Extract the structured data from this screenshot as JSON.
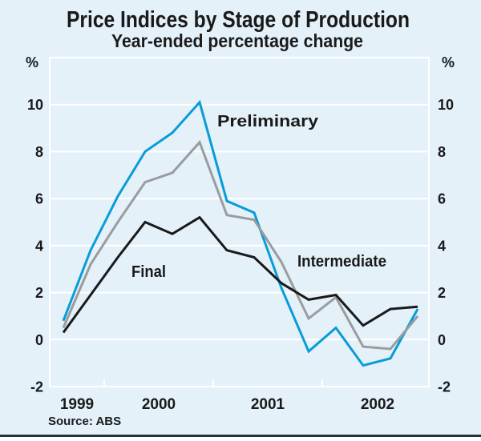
{
  "header": {
    "title": "Price Indices by Stage of Production",
    "subtitle": "Year-ended percentage change"
  },
  "axes": {
    "left_unit": "%",
    "right_unit": "%",
    "y_tick_values": [
      -2,
      0,
      2,
      4,
      6,
      8,
      10
    ],
    "y_gridline_values": [
      0,
      2,
      4,
      6,
      8,
      10
    ],
    "x_labels": [
      "1999",
      "2000",
      "2001",
      "2002"
    ]
  },
  "source_note": "Source: ABS",
  "colors": {
    "background": "#E4F1F9",
    "gridline": "#FFFFFF",
    "text": "#1A1A1A",
    "bottom_rule": "#28323C",
    "preliminary": "#089CD8",
    "intermediate": "#9A9C9E",
    "final": "#1A1A1A"
  },
  "chart_data": {
    "type": "line",
    "title": "Price Indices by Stage of Production",
    "subtitle": "Year-ended percentage change",
    "ylabel": "%",
    "ylim": [
      -2,
      12
    ],
    "y_tick_step": 2,
    "grid": true,
    "legend_position": "inline-labels",
    "x": [
      "1999 Q1",
      "1999 Q2",
      "1999 Q3",
      "1999 Q4",
      "2000 Q1",
      "2000 Q2",
      "2000 Q3",
      "2000 Q4",
      "2001 Q1",
      "2001 Q2",
      "2001 Q3",
      "2001 Q4",
      "2002 Q1",
      "2002 Q2"
    ],
    "series": [
      {
        "key": "preliminary",
        "name": "Preliminary",
        "values": [
          0.8,
          3.8,
          6.1,
          8.0,
          8.8,
          10.1,
          5.9,
          5.4,
          2.2,
          -0.5,
          0.5,
          -1.1,
          -0.8,
          1.3
        ]
      },
      {
        "key": "intermediate",
        "name": "Intermediate",
        "values": [
          0.5,
          3.2,
          5.0,
          6.7,
          7.1,
          8.4,
          5.3,
          5.1,
          3.3,
          0.9,
          1.8,
          -0.3,
          -0.4,
          1.0
        ]
      },
      {
        "key": "final",
        "name": "Final",
        "values": [
          0.3,
          1.9,
          3.5,
          5.0,
          4.5,
          5.2,
          3.8,
          3.5,
          2.4,
          1.7,
          1.9,
          0.6,
          1.3,
          1.4
        ]
      }
    ],
    "source": "ABS"
  }
}
